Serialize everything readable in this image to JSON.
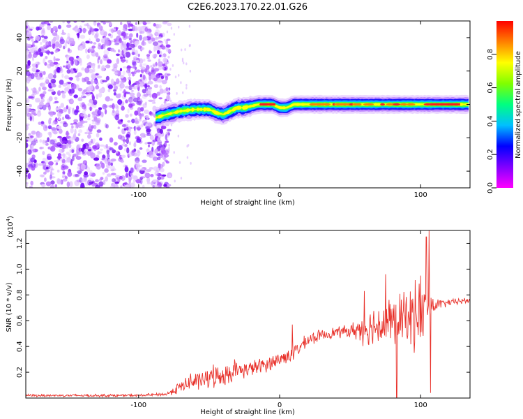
{
  "title": "C2E6.2023.170.22.01.G26",
  "chart_data": [
    {
      "type": "heatmap",
      "name": "spectrogram",
      "xlabel": "Height of straight line (km)",
      "ylabel": "Frequency (Hz)",
      "xlim": [
        -180,
        135
      ],
      "ylim": [
        -50,
        50
      ],
      "x_ticks": [
        -100,
        0,
        100
      ],
      "y_ticks": [
        -40,
        -20,
        0,
        20,
        40
      ],
      "grid": false,
      "regions": [
        {
          "description_x_range": [
            -180,
            -78
          ],
          "pattern": "scattered noise across all frequencies"
        },
        {
          "description_x_range": [
            -88,
            135
          ],
          "pattern": "narrow signal band near 0 Hz"
        }
      ],
      "signal_ridge": {
        "x": [
          -88,
          -80,
          -70,
          -60,
          -50,
          -45,
          -40,
          -35,
          -30,
          -25,
          -20,
          -15,
          -10,
          -5,
          0,
          5,
          10,
          20,
          40,
          60,
          80,
          100,
          120,
          135
        ],
        "y": [
          -8,
          -6,
          -4,
          -3,
          -3,
          -5,
          -6,
          -4,
          -2,
          -2,
          -1,
          0,
          0,
          0,
          -2,
          -2,
          0,
          0,
          0,
          0,
          0,
          0,
          0,
          0
        ]
      },
      "colorbar": {
        "label": "Normalized spectral amplitude",
        "range": [
          0.0,
          1.0
        ],
        "ticks": [
          0.0,
          0.2,
          0.4,
          0.6,
          0.8
        ],
        "colormap": [
          "#ff00ff",
          "#8000ff",
          "#0000ff",
          "#00c0ff",
          "#00ff80",
          "#80ff00",
          "#ffff00",
          "#ff8000",
          "#ff0000"
        ]
      }
    },
    {
      "type": "line",
      "name": "snr",
      "xlabel": "Height of straight line (km)",
      "ylabel": "SNR (10 * v/v)",
      "scale_note": "(x10",
      "scale_exp": "4",
      "scale_close": ")",
      "xlim": [
        -180,
        135
      ],
      "ylim": [
        0,
        13000
      ],
      "x_ticks": [
        -100,
        0,
        100
      ],
      "y_ticks": [
        2000,
        4000,
        6000,
        8000,
        10000,
        12000
      ],
      "y_tick_labels": [
        "0.2",
        "0.4",
        "0.6",
        "0.8",
        "1.0",
        "1.2"
      ],
      "x_tick_labels": [
        "-100",
        "0",
        "100"
      ],
      "color": "#e8312a",
      "grid": false,
      "envelope": {
        "x": [
          -180,
          -100,
          -80,
          -75,
          -70,
          -60,
          -50,
          -40,
          -30,
          -20,
          -10,
          0,
          10,
          20,
          30,
          40,
          50,
          60,
          70,
          80,
          90,
          100,
          110,
          120,
          135
        ],
        "y": [
          200,
          200,
          300,
          600,
          900,
          1300,
          1500,
          1800,
          2100,
          2300,
          2600,
          3000,
          3500,
          4500,
          4900,
          5100,
          5200,
          5400,
          5700,
          5900,
          6200,
          6600,
          7200,
          7400,
          7600
        ],
        "spread": [
          120,
          120,
          150,
          400,
          600,
          800,
          900,
          1000,
          800,
          700,
          700,
          700,
          700,
          600,
          500,
          500,
          600,
          1500,
          2000,
          2500,
          2500,
          3500,
          600,
          300,
          300
        ]
      },
      "spikes": [
        {
          "x": -63,
          "y": 1900
        },
        {
          "x": -47,
          "y": 2600
        },
        {
          "x": -32,
          "y": 3000
        },
        {
          "x": 9,
          "y": 5700
        },
        {
          "x": 60,
          "y": 8300
        },
        {
          "x": 75,
          "y": 9600
        },
        {
          "x": 83,
          "y": 0
        },
        {
          "x": 100,
          "y": 9500
        },
        {
          "x": 104,
          "y": 12500
        },
        {
          "x": 106,
          "y": 13000
        },
        {
          "x": 107,
          "y": 400
        }
      ]
    }
  ],
  "colorbar_tick_labels": [
    "0.0",
    "0.2",
    "0.4",
    "0.6",
    "0.8"
  ],
  "heat_tick_x": [
    "-100",
    "0",
    "100"
  ],
  "heat_tick_y": [
    "-40",
    "-20",
    "0",
    "20",
    "40"
  ]
}
